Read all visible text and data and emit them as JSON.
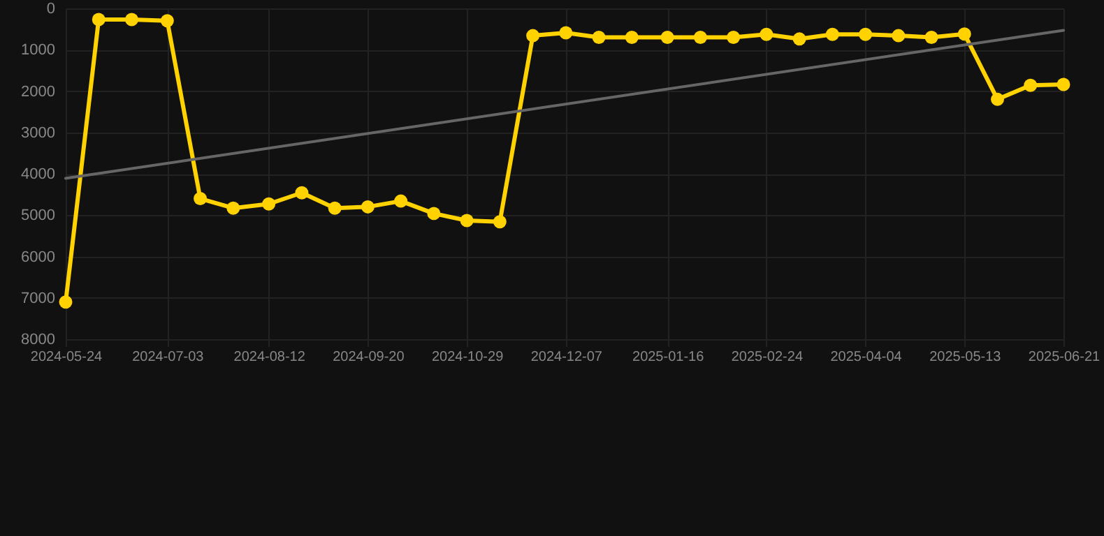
{
  "chart_data": {
    "type": "line",
    "x": [
      "2024-05-24",
      "2024-06-06",
      "2024-06-19",
      "2024-07-03",
      "2024-07-16",
      "2024-07-29",
      "2024-08-12",
      "2024-08-25",
      "2024-09-07",
      "2024-09-20",
      "2024-10-03",
      "2024-10-16",
      "2024-10-29",
      "2024-11-11",
      "2024-11-24",
      "2024-12-07",
      "2024-12-20",
      "2025-01-02",
      "2025-01-16",
      "2025-01-29",
      "2025-02-11",
      "2025-02-24",
      "2025-03-09",
      "2025-03-22",
      "2025-04-04",
      "2025-04-17",
      "2025-04-30",
      "2025-05-13",
      "2025-05-26",
      "2025-06-08",
      "2025-06-21"
    ],
    "series": [
      {
        "color": "#ffd200",
        "marker": "circle",
        "values": [
          7100,
          270,
          270,
          300,
          4600,
          4830,
          4730,
          4460,
          4830,
          4800,
          4660,
          4960,
          5130,
          5160,
          660,
          590,
          700,
          700,
          700,
          700,
          700,
          630,
          740,
          630,
          630,
          660,
          700,
          620,
          2200,
          1860,
          1840
        ]
      },
      {
        "type": "line",
        "color": "#666666",
        "marker": "none",
        "x": [
          "2024-05-24",
          "2025-06-21"
        ],
        "values": [
          4110,
          530
        ]
      }
    ],
    "xlim": [
      "2024-05-24",
      "2025-06-21"
    ],
    "ylim": [
      8000,
      0
    ],
    "xticks": [
      "2024-05-24",
      "2024-07-03",
      "2024-08-12",
      "2024-09-20",
      "2024-10-29",
      "2024-12-07",
      "2025-01-16",
      "2025-02-24",
      "2025-04-04",
      "2025-05-13",
      "2025-06-21"
    ],
    "yticks": [
      0,
      1000,
      2000,
      3000,
      4000,
      5000,
      6000,
      7000,
      8000
    ],
    "grid": true
  }
}
